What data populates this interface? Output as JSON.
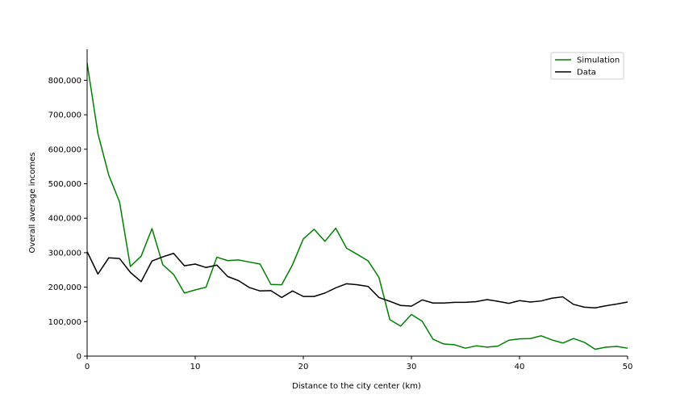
{
  "chart_data": {
    "type": "line",
    "title": "",
    "xlabel": "Distance to the city center (km)",
    "ylabel": "Overall average incomes",
    "xlim": [
      0,
      50
    ],
    "ylim": [
      0,
      890000
    ],
    "x_ticks": [
      0,
      10,
      20,
      30,
      40,
      50
    ],
    "x_tick_labels": [
      "0",
      "10",
      "20",
      "30",
      "40",
      "50"
    ],
    "y_ticks": [
      0,
      100000,
      200000,
      300000,
      400000,
      500000,
      600000,
      700000,
      800000
    ],
    "y_tick_labels": [
      "0",
      "100,000",
      "200,000",
      "300,000",
      "400,000",
      "500,000",
      "600,000",
      "700,000",
      "800,000"
    ],
    "grid": false,
    "legend_position": "top-right",
    "x": [
      0,
      1,
      2,
      3,
      4,
      5,
      6,
      7,
      8,
      9,
      10,
      11,
      12,
      13,
      14,
      15,
      16,
      17,
      18,
      19,
      20,
      21,
      22,
      23,
      24,
      25,
      26,
      27,
      28,
      29,
      30,
      31,
      32,
      33,
      34,
      35,
      36,
      37,
      38,
      39,
      40,
      41,
      42,
      43,
      44,
      45,
      46,
      47,
      48,
      49,
      50
    ],
    "series": [
      {
        "name": "Simulation",
        "color": "#008000",
        "values": [
          850000,
          645000,
          525000,
          447000,
          260000,
          290000,
          370000,
          265000,
          237000,
          183000,
          192000,
          200000,
          287000,
          277000,
          279000,
          273000,
          267000,
          208000,
          207000,
          265000,
          340000,
          368000,
          333000,
          371000,
          313000,
          295000,
          276000,
          228000,
          106000,
          87000,
          121000,
          101000,
          49000,
          35000,
          33000,
          23000,
          30000,
          26000,
          29000,
          46000,
          50000,
          51000,
          59000,
          47000,
          38000,
          51000,
          40000,
          20000,
          26000,
          28000,
          23000
        ]
      },
      {
        "name": "Data",
        "color": "#000000",
        "values": [
          303000,
          238000,
          285000,
          283000,
          243000,
          216000,
          276000,
          288000,
          298000,
          262000,
          267000,
          257000,
          264000,
          231000,
          219000,
          199000,
          189000,
          190000,
          170000,
          189000,
          173000,
          173000,
          183000,
          198000,
          210000,
          207000,
          202000,
          170000,
          159000,
          147000,
          145000,
          163000,
          154000,
          154000,
          156000,
          156000,
          158000,
          164000,
          159000,
          153000,
          161000,
          157000,
          160000,
          168000,
          172000,
          150000,
          142000,
          140000,
          146000,
          151000,
          157000
        ]
      }
    ]
  }
}
